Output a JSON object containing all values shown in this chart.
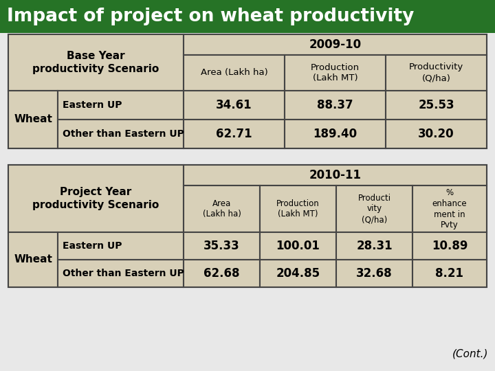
{
  "title": "Impact of project on wheat productivity",
  "title_bg": "#267326",
  "title_color": "#ffffff",
  "table_bg": "#d8d0b8",
  "border_color": "#444444",
  "page_bg": "#e8e8e8",
  "table1": {
    "year_label": "2009-10",
    "row_header_col1": "Base Year\nproductivity Scenario",
    "col_headers": [
      "Area (Lakh ha)",
      "Production\n(Lakh MT)",
      "Productivity\n(Q/ha)"
    ],
    "row_label": "Wheat",
    "rows": [
      [
        "Eastern UP",
        "34.61",
        "88.37",
        "25.53"
      ],
      [
        "Other than Eastern UP",
        "62.71",
        "189.40",
        "30.20"
      ]
    ]
  },
  "table2": {
    "year_label": "2010-11",
    "row_header_col1": "Project Year\nproductivity Scenario",
    "col_headers": [
      "Area\n(Lakh ha)",
      "Production\n(Lakh MT)",
      "Producti\nvity\n(Q/ha)",
      "%\nenhance\nment in\nPvty"
    ],
    "row_label": "Wheat",
    "rows": [
      [
        "Eastern UP",
        "35.33",
        "100.01",
        "28.31",
        "10.89"
      ],
      [
        "Other than Eastern UP",
        "62.68",
        "204.85",
        "32.68",
        "8.21"
      ]
    ]
  },
  "cont_label": "(Cont.)"
}
